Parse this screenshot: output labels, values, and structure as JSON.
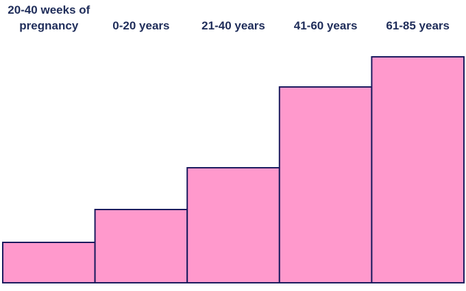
{
  "chart_data": {
    "type": "bar",
    "categories": [
      "20-40 weeks of pregnancy",
      "0-20 years",
      "21-40 years",
      "41-60 years",
      "61-85 years"
    ],
    "values": [
      59,
      107,
      168,
      286,
      330
    ],
    "color": "#ff99cc",
    "edge_color": "#1a1a5e",
    "ylim": [
      0,
      330
    ]
  }
}
